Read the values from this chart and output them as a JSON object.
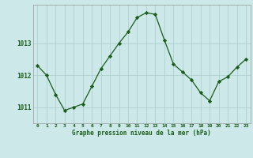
{
  "hours": [
    0,
    1,
    2,
    3,
    4,
    5,
    6,
    7,
    8,
    9,
    10,
    11,
    12,
    13,
    14,
    15,
    16,
    17,
    18,
    19,
    20,
    21,
    22,
    23
  ],
  "pressure": [
    1012.3,
    1012.0,
    1011.4,
    1010.9,
    1011.0,
    1011.1,
    1011.65,
    1012.2,
    1012.6,
    1013.0,
    1013.35,
    1013.8,
    1013.95,
    1013.9,
    1013.1,
    1012.35,
    1012.1,
    1011.85,
    1011.45,
    1011.2,
    1011.8,
    1011.95,
    1012.25,
    1012.5
  ],
  "line_color": "#1a5c1a",
  "marker": "D",
  "marker_size": 2.2,
  "bg_color": "#cce8e8",
  "grid_color": "#aacccc",
  "tick_color": "#1a5c1a",
  "label_color": "#1a5c1a",
  "xlabel": "Graphe pression niveau de la mer (hPa)",
  "yticks": [
    1011,
    1012,
    1013
  ],
  "ylim": [
    1010.5,
    1014.2
  ],
  "xlim": [
    -0.5,
    23.5
  ]
}
